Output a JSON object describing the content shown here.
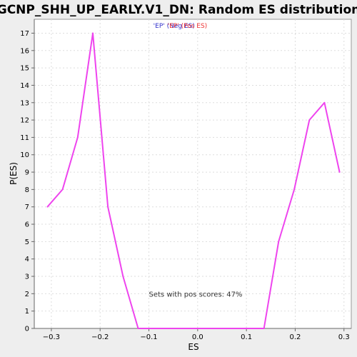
{
  "chart_data": {
    "type": "line",
    "title": "GCNP_SHH_UP_EARLY.V1_DN: Random ES distribution",
    "xlabel": "ES",
    "ylabel": "P(ES)",
    "xlim": [
      -0.335,
      0.315
    ],
    "ylim": [
      0,
      17.8
    ],
    "x_ticks": [
      -0.3,
      -0.2,
      -0.1,
      0.0,
      0.1,
      0.2,
      0.3
    ],
    "x_tick_labels": [
      "−0.3",
      "−0.2",
      "−0.1",
      "0.0",
      "0.1",
      "0.2",
      "0.3"
    ],
    "y_ticks": [
      0,
      1,
      2,
      3,
      4,
      5,
      6,
      7,
      8,
      9,
      10,
      11,
      12,
      13,
      14,
      15,
      16,
      17
    ],
    "y_tick_labels": [
      "0",
      "1",
      "2",
      "3",
      "4",
      "5",
      "6",
      "7",
      "8",
      "9",
      "10",
      "11",
      "12",
      "13",
      "14",
      "15",
      "16",
      "17"
    ],
    "grid": true,
    "legend": {
      "placement": "top-center",
      "entries": [
        {
          "label": "'EP' (Neg ES)",
          "color": "#3333cc"
        },
        {
          "label": "'EP' (Pos ES)",
          "color": "#ee3333"
        }
      ]
    },
    "series": [
      {
        "color": "#ee44ee",
        "x": [
          -0.308,
          -0.277,
          -0.246,
          -0.215,
          -0.184,
          -0.153,
          -0.122,
          -0.091,
          -0.06,
          -0.029,
          0.002,
          0.033,
          0.064,
          0.095,
          0.126,
          0.136,
          0.166,
          0.198,
          0.229,
          0.26,
          0.291
        ],
        "y": [
          7,
          8,
          11,
          17,
          7,
          3,
          0,
          0,
          0,
          0,
          0,
          0,
          0,
          0,
          0,
          0,
          5,
          8,
          12,
          13,
          9
        ]
      }
    ],
    "annotation": {
      "text": "Sets with pos scores: 47%",
      "x": -0.1,
      "y": 2
    }
  }
}
